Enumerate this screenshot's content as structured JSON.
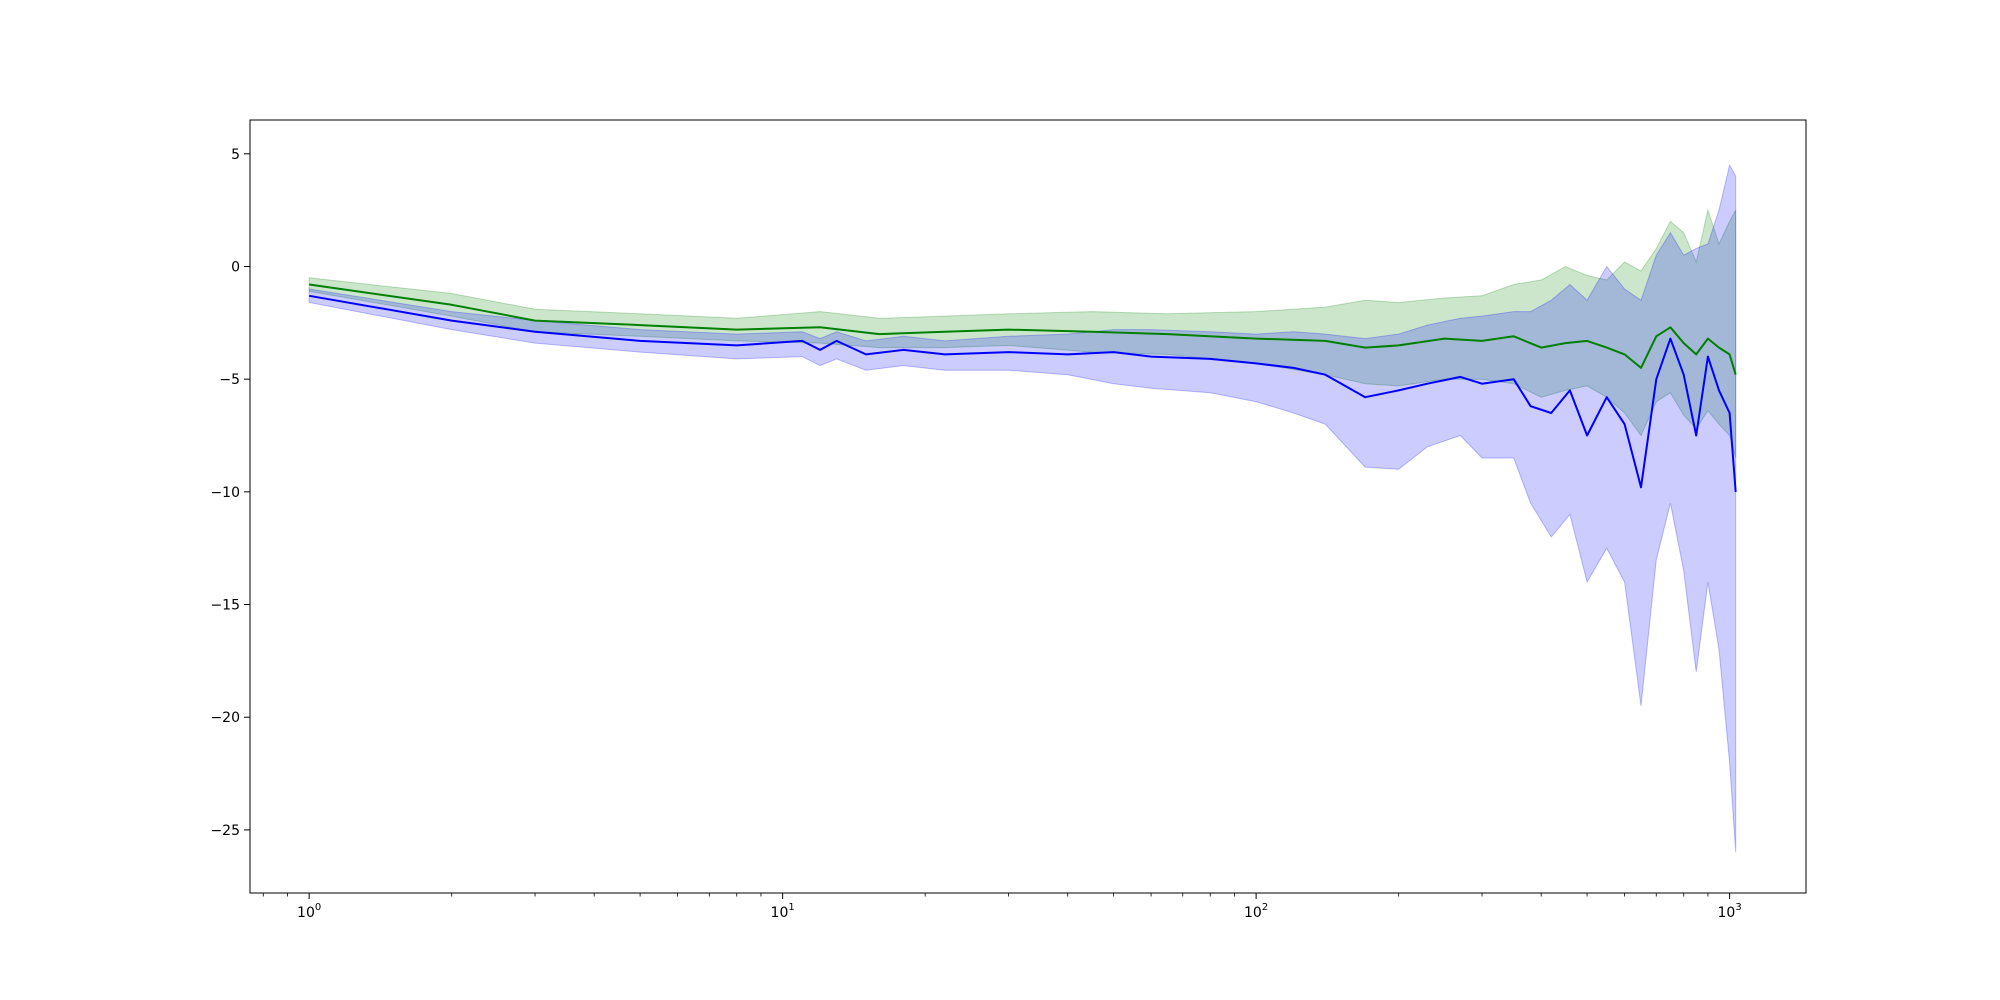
{
  "chart_data": {
    "type": "line",
    "title": "",
    "xlabel": "",
    "ylabel": "",
    "x_scale": "log",
    "xlim": [
      0.75,
      1450
    ],
    "ylim": [
      -27.8,
      6.5
    ],
    "grid": false,
    "legend": "none",
    "x_ticks": [
      {
        "value": 1,
        "base": "10",
        "exp": "0"
      },
      {
        "value": 10,
        "base": "10",
        "exp": "1"
      },
      {
        "value": 100,
        "base": "10",
        "exp": "2"
      },
      {
        "value": 1000,
        "base": "10",
        "exp": "3"
      }
    ],
    "y_ticks": [
      {
        "value": 5,
        "label": "5"
      },
      {
        "value": 0,
        "label": "0"
      },
      {
        "value": -5,
        "label": "−5"
      },
      {
        "value": -10,
        "label": "−10"
      },
      {
        "value": -15,
        "label": "−15"
      },
      {
        "value": -20,
        "label": "−20"
      },
      {
        "value": -25,
        "label": "−25"
      }
    ],
    "series": [
      {
        "color": "#008000",
        "band_color": "#008000",
        "band_opacity": 0.2,
        "x": [
          1,
          2,
          3,
          5,
          8,
          12,
          16,
          22,
          30,
          45,
          65,
          100,
          140,
          170,
          200,
          250,
          300,
          350,
          400,
          450,
          500,
          550,
          600,
          650,
          700,
          750,
          800,
          850,
          900,
          950,
          1000,
          1030
        ],
        "y": [
          -0.8,
          -1.7,
          -2.4,
          -2.6,
          -2.8,
          -2.7,
          -3.0,
          -2.9,
          -2.8,
          -2.9,
          -3.0,
          -3.2,
          -3.3,
          -3.6,
          -3.5,
          -3.2,
          -3.3,
          -3.1,
          -3.6,
          -3.4,
          -3.3,
          -3.6,
          -3.9,
          -4.5,
          -3.1,
          -2.7,
          -3.4,
          -3.9,
          -3.2,
          -3.6,
          -3.9,
          -4.8
        ],
        "upper": [
          -0.5,
          -1.2,
          -1.9,
          -2.1,
          -2.3,
          -2.0,
          -2.3,
          -2.2,
          -2.1,
          -2.0,
          -2.1,
          -2.0,
          -1.8,
          -1.5,
          -1.6,
          -1.4,
          -1.3,
          -0.8,
          -0.6,
          0.0,
          -0.4,
          -0.6,
          0.2,
          -0.2,
          0.8,
          2.0,
          1.5,
          0.2,
          2.5,
          1.0,
          2.0,
          2.5
        ],
        "lower": [
          -1.1,
          -2.2,
          -2.9,
          -3.1,
          -3.3,
          -3.4,
          -3.6,
          -3.6,
          -3.5,
          -3.8,
          -3.9,
          -4.3,
          -4.8,
          -5.2,
          -5.3,
          -5.0,
          -5.0,
          -5.2,
          -5.8,
          -5.5,
          -5.3,
          -5.8,
          -6.5,
          -7.5,
          -6.0,
          -5.6,
          -6.6,
          -7.2,
          -6.4,
          -7.0,
          -7.5,
          -8.5
        ]
      },
      {
        "color": "#0000ff",
        "band_color": "#0000ff",
        "band_opacity": 0.2,
        "x": [
          1,
          2,
          3,
          5,
          8,
          11,
          12,
          13,
          15,
          18,
          22,
          30,
          40,
          50,
          60,
          80,
          100,
          120,
          140,
          170,
          200,
          230,
          270,
          300,
          350,
          380,
          420,
          460,
          500,
          550,
          600,
          650,
          700,
          750,
          800,
          850,
          900,
          950,
          1000,
          1030
        ],
        "y": [
          -1.3,
          -2.4,
          -2.9,
          -3.3,
          -3.5,
          -3.3,
          -3.7,
          -3.3,
          -3.9,
          -3.7,
          -3.9,
          -3.8,
          -3.9,
          -3.8,
          -4.0,
          -4.1,
          -4.3,
          -4.5,
          -4.8,
          -5.8,
          -5.5,
          -5.2,
          -4.9,
          -5.2,
          -5.0,
          -6.2,
          -6.5,
          -5.5,
          -7.5,
          -5.8,
          -7.0,
          -9.8,
          -5.0,
          -3.2,
          -4.8,
          -7.5,
          -4.0,
          -5.5,
          -6.5,
          -10.0
        ],
        "upper": [
          -1.0,
          -2.0,
          -2.4,
          -2.8,
          -3.0,
          -2.9,
          -3.2,
          -2.9,
          -3.3,
          -3.1,
          -3.3,
          -3.1,
          -3.0,
          -2.8,
          -2.8,
          -2.9,
          -3.0,
          -2.9,
          -3.0,
          -3.2,
          -3.0,
          -2.6,
          -2.3,
          -2.2,
          -2.0,
          -2.0,
          -1.5,
          -0.8,
          -1.5,
          0.0,
          -1.0,
          -1.5,
          0.5,
          1.5,
          0.5,
          0.8,
          1.0,
          2.5,
          4.5,
          4.0
        ],
        "lower": [
          -1.6,
          -2.8,
          -3.4,
          -3.8,
          -4.1,
          -4.0,
          -4.4,
          -4.1,
          -4.6,
          -4.4,
          -4.6,
          -4.6,
          -4.8,
          -5.2,
          -5.4,
          -5.6,
          -6.0,
          -6.5,
          -7.0,
          -8.9,
          -9.0,
          -8.0,
          -7.5,
          -8.5,
          -8.5,
          -10.5,
          -12.0,
          -11.0,
          -14.0,
          -12.5,
          -14.0,
          -19.5,
          -13.0,
          -10.5,
          -13.5,
          -18.0,
          -14.0,
          -17.0,
          -22.0,
          -26.0
        ]
      }
    ]
  }
}
